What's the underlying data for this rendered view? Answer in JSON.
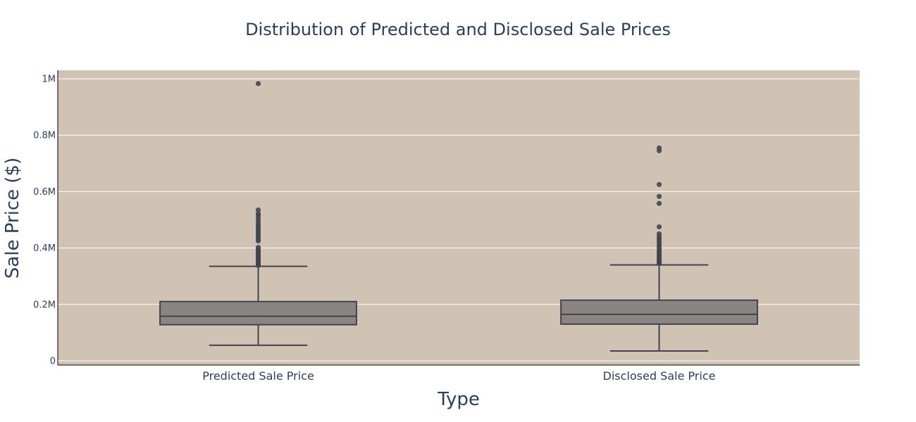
{
  "chart_data": {
    "type": "box",
    "title": "Distribution of Predicted and Disclosed Sale Prices",
    "xlabel": "Type",
    "ylabel": "Sale Price ($)",
    "categories": [
      "Predicted Sale Price",
      "Disclosed Sale Price"
    ],
    "ylim": [
      -15000,
      1030000
    ],
    "yticks": [
      0,
      200000,
      400000,
      600000,
      800000,
      1000000
    ],
    "ytick_labels": [
      "0",
      "0.2M",
      "0.4M",
      "0.6M",
      "0.8M",
      "1M"
    ],
    "grid": true,
    "legend": "none",
    "series": [
      {
        "category": "Predicted Sale Price",
        "min": 55000,
        "q1": 128000,
        "median": 158000,
        "q3": 210000,
        "max": 335000,
        "outliers": [
          338000,
          342000,
          346000,
          350000,
          354000,
          358000,
          362000,
          366000,
          372000,
          378000,
          384000,
          390000,
          396000,
          402000,
          425000,
          432000,
          440000,
          448000,
          455000,
          462000,
          470000,
          478000,
          485000,
          495000,
          505000,
          515000,
          522000,
          535000,
          983000
        ]
      },
      {
        "category": "Disclosed Sale Price",
        "min": 35000,
        "q1": 130000,
        "median": 165000,
        "q3": 215000,
        "max": 340000,
        "outliers": [
          345000,
          350000,
          356000,
          362000,
          368000,
          374000,
          380000,
          386000,
          392000,
          400000,
          408000,
          416000,
          424000,
          432000,
          440000,
          450000,
          475000,
          558000,
          583000,
          625000,
          745000,
          755000
        ]
      }
    ],
    "colors": {
      "plot_bg": "#d0c3b3",
      "paper_bg": "#ffffff",
      "grid": "#ffffff",
      "box_fill": "#898580",
      "box_line": "#3f4450",
      "outlier_fill": "#3f4450",
      "text": "#2a3f5f",
      "axis_line": "#000000"
    }
  }
}
